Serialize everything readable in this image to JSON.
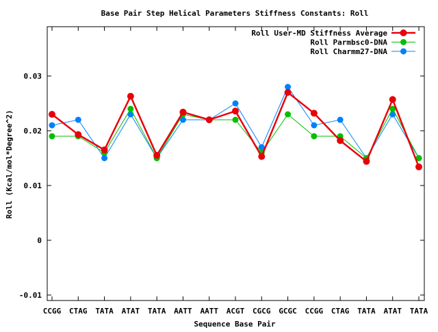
{
  "chart_data": {
    "type": "line",
    "title": "Base Pair Step Helical Parameters Stiffness Constants: Roll",
    "xlabel": "Sequence Base Pair",
    "ylabel": "Roll (Kcal/mol*Degree^2)",
    "categories": [
      "CCGG",
      "CTAG",
      "TATA",
      "ATAT",
      "TATA",
      "AATT",
      "AATT",
      "ACGT",
      "CGCG",
      "GCGC",
      "CCGG",
      "CTAG",
      "TATA",
      "ATAT",
      "TATA"
    ],
    "ylim": [
      -0.011,
      0.039
    ],
    "yticks": [
      -0.01,
      0,
      0.01,
      0.02,
      0.03
    ],
    "ytick_labels": [
      "-0.01",
      "0",
      "0.01",
      "0.02",
      "0.03"
    ],
    "grid": false,
    "legend_position": "top-right",
    "series": [
      {
        "name": "Roll User-MD Stiffness Average",
        "color": "#e8000b",
        "values": [
          0.023,
          0.0193,
          0.0165,
          0.0263,
          0.0155,
          0.0234,
          0.022,
          0.0236,
          0.0153,
          0.027,
          0.0232,
          0.0182,
          0.0144,
          0.0257,
          0.0134
        ]
      },
      {
        "name": "Roll Parmbsc0-DNA",
        "color": "#00c000",
        "values": [
          0.019,
          0.019,
          0.016,
          0.024,
          0.015,
          0.023,
          0.022,
          0.022,
          0.016,
          0.023,
          0.019,
          0.019,
          0.015,
          0.024,
          0.015
        ]
      },
      {
        "name": "Roll Charmm27-DNA",
        "color": "#0080ff",
        "values": [
          0.021,
          0.022,
          0.015,
          0.023,
          0.015,
          0.022,
          0.022,
          0.025,
          0.017,
          0.028,
          0.021,
          0.022,
          0.015,
          0.023,
          0.015
        ]
      }
    ]
  }
}
